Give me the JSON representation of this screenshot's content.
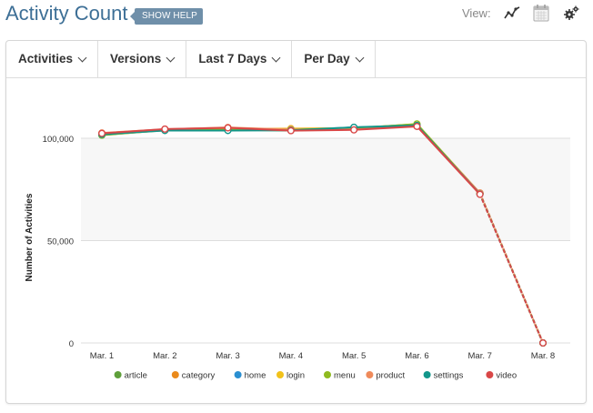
{
  "header": {
    "title": "Activity Count",
    "help_label": "SHOW HELP",
    "view_label": "View:",
    "view_icons": [
      "line-chart-icon",
      "calendar-icon",
      "settings-gears-icon"
    ]
  },
  "toolbar": {
    "activities": "Activities",
    "versions": "Versions",
    "range": "Last 7 Days",
    "interval": "Per Day"
  },
  "colors": {
    "article": "#5e9f3a",
    "category": "#ea8a1b",
    "home": "#2a8fd1",
    "login": "#f2c21a",
    "menu": "#8fba1f",
    "product": "#ef8a5a",
    "settings": "#12968a",
    "video": "#d94747"
  },
  "chart_data": {
    "type": "line",
    "ylabel": "Number of Activities",
    "xlabel": "",
    "y_ticks": [
      "0",
      "50,000",
      "100,000"
    ],
    "ylim": [
      0,
      110000
    ],
    "categories": [
      "Mar. 1",
      "Mar. 2",
      "Mar. 3",
      "Mar. 4",
      "Mar. 5",
      "Mar. 6",
      "Mar. 7",
      "Mar. 8"
    ],
    "series": [
      {
        "name": "article",
        "values": [
          101500,
          104000,
          104200,
          103800,
          104600,
          106500,
          73000,
          0
        ]
      },
      {
        "name": "category",
        "values": [
          102300,
          104300,
          104400,
          104700,
          104900,
          106800,
          73200,
          0
        ]
      },
      {
        "name": "home",
        "values": [
          101800,
          104100,
          104000,
          104100,
          105300,
          106100,
          72800,
          0
        ]
      },
      {
        "name": "login",
        "values": [
          101700,
          103900,
          104300,
          104600,
          105000,
          106900,
          73100,
          0
        ]
      },
      {
        "name": "menu",
        "values": [
          101600,
          104200,
          104100,
          104300,
          104800,
          107000,
          72900,
          0
        ]
      },
      {
        "name": "product",
        "values": [
          102600,
          104400,
          105300,
          104200,
          104300,
          105900,
          73300,
          0
        ]
      },
      {
        "name": "settings",
        "values": [
          101900,
          103800,
          103800,
          103900,
          105400,
          106300,
          72700,
          0
        ]
      },
      {
        "name": "video",
        "values": [
          102400,
          104500,
          105100,
          103700,
          104100,
          105800,
          72600,
          0
        ]
      }
    ],
    "projected_from_index": 6,
    "grid": true,
    "legend_position": "bottom"
  }
}
